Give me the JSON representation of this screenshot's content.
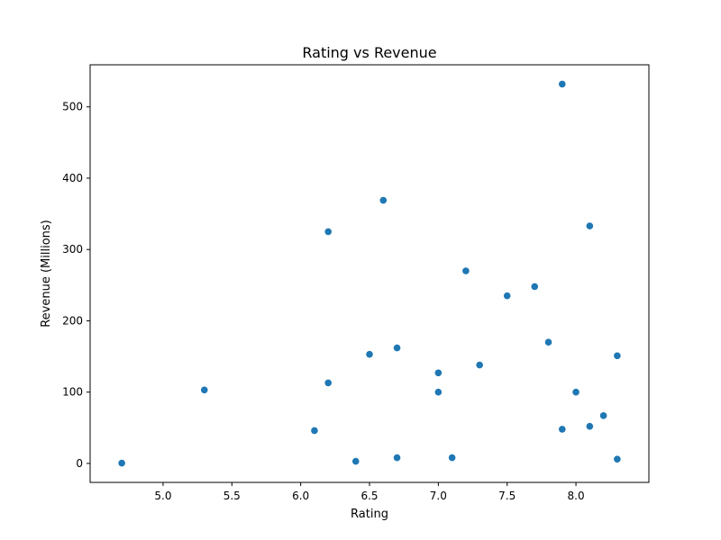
{
  "chart_data": {
    "type": "scatter",
    "title": "Rating vs Revenue",
    "xlabel": "Rating",
    "ylabel": "Revenue (Millions)",
    "xlim": [
      4.47,
      8.53
    ],
    "ylim": [
      -26.6,
      559
    ],
    "xticks": [
      "5.0",
      "5.5",
      "6.0",
      "6.5",
      "7.0",
      "7.5",
      "8.0"
    ],
    "yticks": [
      "0",
      "100",
      "200",
      "300",
      "400",
      "500"
    ],
    "grid": false,
    "marker_color": "#1f77b4",
    "points": [
      {
        "x": 4.7,
        "y": 0.5
      },
      {
        "x": 5.3,
        "y": 103
      },
      {
        "x": 6.1,
        "y": 46
      },
      {
        "x": 6.2,
        "y": 325
      },
      {
        "x": 6.2,
        "y": 113
      },
      {
        "x": 6.4,
        "y": 3
      },
      {
        "x": 6.5,
        "y": 153
      },
      {
        "x": 6.6,
        "y": 369
      },
      {
        "x": 6.7,
        "y": 162
      },
      {
        "x": 6.7,
        "y": 8
      },
      {
        "x": 7.0,
        "y": 127
      },
      {
        "x": 7.0,
        "y": 100
      },
      {
        "x": 7.1,
        "y": 8
      },
      {
        "x": 7.2,
        "y": 270
      },
      {
        "x": 7.3,
        "y": 138
      },
      {
        "x": 7.5,
        "y": 235
      },
      {
        "x": 7.7,
        "y": 248
      },
      {
        "x": 7.8,
        "y": 170
      },
      {
        "x": 7.9,
        "y": 532
      },
      {
        "x": 7.9,
        "y": 48
      },
      {
        "x": 8.0,
        "y": 100
      },
      {
        "x": 8.1,
        "y": 333
      },
      {
        "x": 8.1,
        "y": 52
      },
      {
        "x": 8.2,
        "y": 67
      },
      {
        "x": 8.3,
        "y": 151
      },
      {
        "x": 8.3,
        "y": 6
      }
    ]
  }
}
